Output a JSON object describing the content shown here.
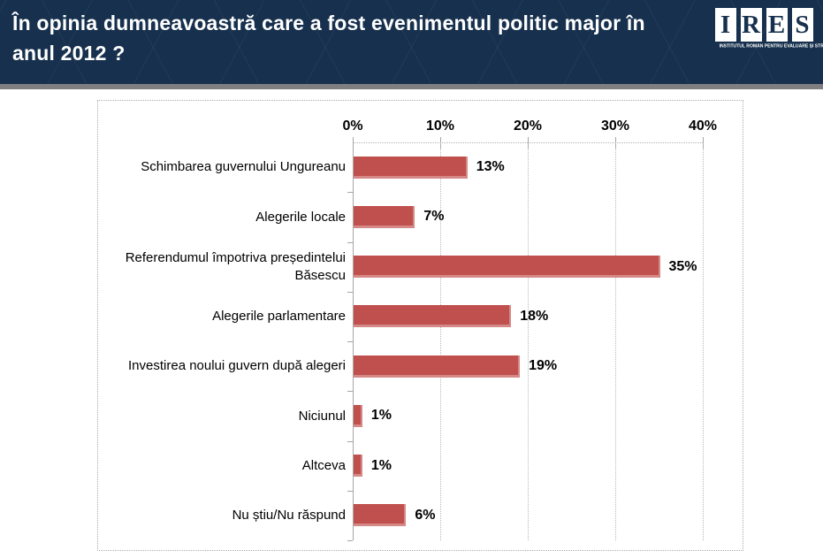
{
  "header": {
    "title_lines": [
      "În opinia dumneavoastră care a fost evenimentul politic major în",
      "anul 2012 ?"
    ],
    "logo": {
      "letters": [
        "I",
        "R",
        "E",
        "S"
      ],
      "tagline": "INSTITUTUL ROMÂN PENTRU EVALUARE ȘI STRATEGIE"
    }
  },
  "colors": {
    "header_bg": "#16304D",
    "divider": "#7F7F7F",
    "bar": "#C0504D",
    "axis": "#A6A6A6",
    "grid": "#B8B8B8",
    "panel_border": "#ABABAB",
    "title_text": "#FFFFFF",
    "label_text": "#000000"
  },
  "chart_data": {
    "type": "bar",
    "orientation": "horizontal",
    "title": "",
    "categories": [
      "Schimbarea guvernului Ungureanu",
      "Alegerile locale",
      "Referendumul împotriva președintelui Băsescu",
      "Alegerile parlamentare",
      "Investirea noului guvern după alegeri",
      "Niciunul",
      "Altceva",
      "Nu știu/Nu răspund"
    ],
    "values": [
      13,
      7,
      35,
      18,
      19,
      1,
      1,
      6
    ],
    "value_labels": [
      "13%",
      "7%",
      "35%",
      "18%",
      "19%",
      "1%",
      "1%",
      "6%"
    ],
    "x_ticks": [
      "0%",
      "10%",
      "20%",
      "30%",
      "40%"
    ],
    "xlim": [
      0,
      40
    ],
    "grid": "vertical-dotted",
    "legend": "none",
    "bar_color": "#C0504D"
  }
}
